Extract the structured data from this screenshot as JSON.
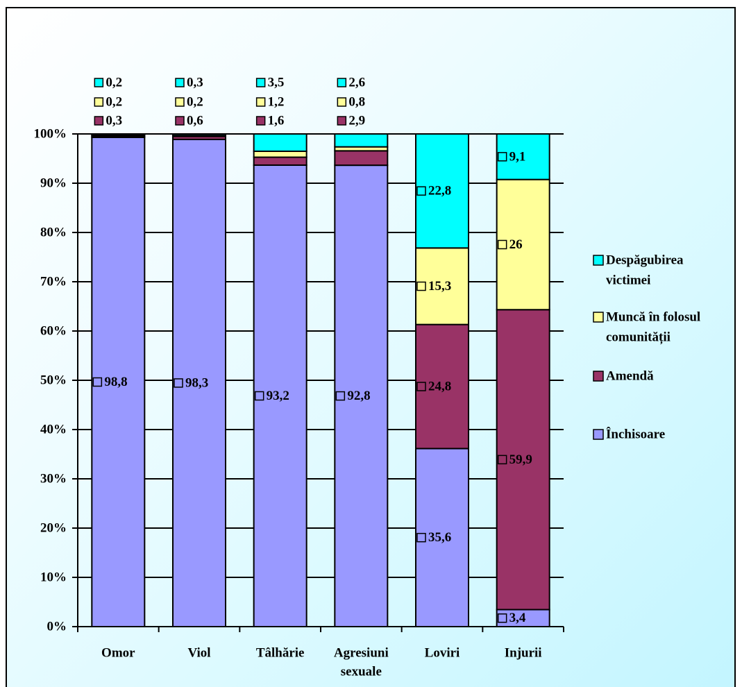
{
  "chart_data": {
    "type": "bar",
    "stacked": true,
    "percent_stacked": true,
    "categories": [
      "Omor",
      "Viol",
      "Tâlhărie",
      "Agresiuni sexuale",
      "Loviri",
      "Injurii"
    ],
    "series": [
      {
        "name": "Închisoare",
        "color": "#9999ff",
        "values": [
          98.8,
          98.3,
          93.2,
          92.8,
          35.6,
          3.4
        ],
        "labels": [
          "98,8",
          "98,3",
          "93,2",
          "92,8",
          "35,6",
          "3,4"
        ]
      },
      {
        "name": "Amendă",
        "color": "#993366",
        "values": [
          0.3,
          0.6,
          1.6,
          2.9,
          24.8,
          59.9
        ],
        "labels": [
          "0,3",
          "0,6",
          "1,6",
          "2,9",
          "24,8",
          "59,9"
        ]
      },
      {
        "name": "Muncă în folosul comunității",
        "color": "#ffff99",
        "values": [
          0.2,
          0.2,
          1.2,
          0.8,
          15.3,
          26
        ],
        "labels": [
          "0,2",
          "0,2",
          "1,2",
          "0,8",
          "15,3",
          "26"
        ]
      },
      {
        "name": "Despăgubirea victimei",
        "color": "#00ffff",
        "values": [
          0.2,
          0.3,
          3.5,
          2.6,
          22.8,
          9.1
        ],
        "labels": [
          "0,2",
          "0,3",
          "3,5",
          "2,6",
          "22,8",
          "9,1"
        ]
      }
    ],
    "y_ticks": [
      "0%",
      "10%",
      "20%",
      "30%",
      "40%",
      "50%",
      "60%",
      "70%",
      "80%",
      "90%",
      "100%"
    ],
    "ylim": [
      0,
      100
    ],
    "grid": true,
    "legend_position": "right",
    "legend": [
      {
        "lines": [
          "Despăgubirea",
          "victimei"
        ],
        "color": "#00ffff"
      },
      {
        "lines": [
          "Muncă în folosul",
          "comunității"
        ],
        "color": "#ffff99"
      },
      {
        "lines": [
          "Amendă"
        ],
        "color": "#993366"
      },
      {
        "lines": [
          "Închisoare"
        ],
        "color": "#9999ff"
      }
    ],
    "category_labels": [
      [
        "Omor"
      ],
      [
        "Viol"
      ],
      [
        "Tâlhărie"
      ],
      [
        "Agresiuni",
        "sexuale"
      ],
      [
        "Loviri"
      ],
      [
        "Injurii"
      ]
    ]
  }
}
